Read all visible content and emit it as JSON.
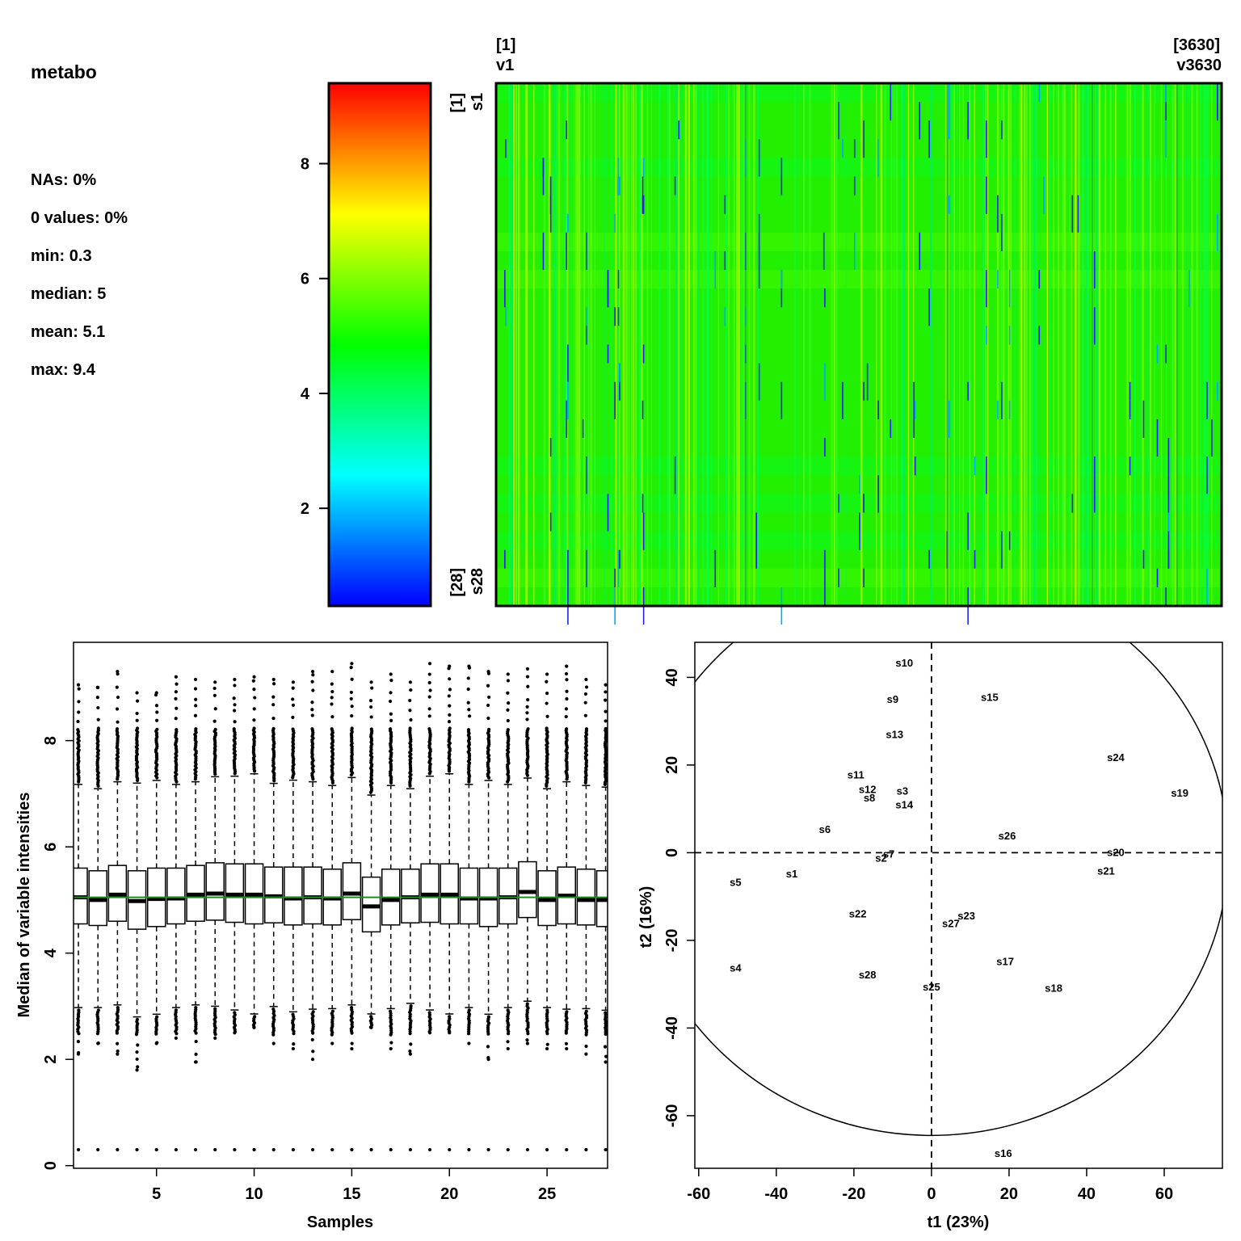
{
  "summary": {
    "title": "metabo",
    "stats": [
      "NAs: 0%",
      "0 values: 0%",
      "min: 0.3",
      "median: 5",
      "mean: 5.1",
      "max: 9.4"
    ]
  },
  "chart_data": [
    {
      "type": "heatmap",
      "title": "",
      "colorbar_ticks": [
        "2",
        "4",
        "6",
        "8"
      ],
      "colorbar_range": [
        0.3,
        9.4
      ],
      "colorbar_colors": [
        "#0000ff",
        "#00ffff",
        "#00ff00",
        "#ffff00",
        "#ff0000"
      ],
      "col_first_index": "[1]",
      "col_first_label": "v1",
      "col_last_index": "[3630]",
      "col_last_label": "v3630",
      "row_first_index": "[1]",
      "row_first_label": "s1",
      "row_last_index": "[28]",
      "row_last_label": "s28",
      "n_rows": 28,
      "n_cols": 3630,
      "dominant_color": "#22f000"
    },
    {
      "type": "box",
      "xlabel": "Samples",
      "ylabel": "Median of variable intensities",
      "xlim": [
        1,
        28
      ],
      "ylim": [
        0,
        9.8
      ],
      "x_ticks": [
        "5",
        "10",
        "15",
        "20",
        "25"
      ],
      "y_ticks": [
        "0",
        "2",
        "4",
        "6",
        "8"
      ],
      "median_line": 5.05,
      "median_line_color": "#228b22",
      "samples": [
        {
          "x": 1,
          "q1": 4.55,
          "median": 5.05,
          "q3": 5.6,
          "min": 2.1,
          "max": 9.05,
          "lower_out_min": 2.1,
          "upper_out_max": 9.05
        },
        {
          "x": 2,
          "q1": 4.52,
          "median": 5.0,
          "q3": 5.55,
          "min": 2.3,
          "max": 9.0,
          "lower_out_min": 2.3,
          "upper_out_max": 9.0
        },
        {
          "x": 3,
          "q1": 4.6,
          "median": 5.1,
          "q3": 5.65,
          "min": 2.1,
          "max": 9.3,
          "lower_out_min": 2.1,
          "upper_out_max": 9.3
        },
        {
          "x": 4,
          "q1": 4.45,
          "median": 4.98,
          "q3": 5.55,
          "min": 1.8,
          "max": 8.9,
          "lower_out_min": 1.8,
          "upper_out_max": 8.9
        },
        {
          "x": 5,
          "q1": 4.5,
          "median": 5.02,
          "q3": 5.6,
          "min": 2.3,
          "max": 8.9,
          "lower_out_min": 2.3,
          "upper_out_max": 8.9
        },
        {
          "x": 6,
          "q1": 4.55,
          "median": 5.03,
          "q3": 5.6,
          "min": 2.4,
          "max": 9.2,
          "lower_out_min": 2.4,
          "upper_out_max": 9.2
        },
        {
          "x": 7,
          "q1": 4.6,
          "median": 5.1,
          "q3": 5.65,
          "min": 1.95,
          "max": 9.15,
          "lower_out_min": 1.95,
          "upper_out_max": 9.15
        },
        {
          "x": 8,
          "q1": 4.62,
          "median": 5.12,
          "q3": 5.7,
          "min": 2.4,
          "max": 9.1,
          "lower_out_min": 2.4,
          "upper_out_max": 9.1
        },
        {
          "x": 9,
          "q1": 4.58,
          "median": 5.1,
          "q3": 5.68,
          "min": 2.5,
          "max": 9.15,
          "lower_out_min": 2.5,
          "upper_out_max": 9.15
        },
        {
          "x": 10,
          "q1": 4.55,
          "median": 5.1,
          "q3": 5.68,
          "min": 2.6,
          "max": 9.2,
          "lower_out_min": 2.6,
          "upper_out_max": 9.2
        },
        {
          "x": 11,
          "q1": 4.57,
          "median": 5.07,
          "q3": 5.62,
          "min": 2.3,
          "max": 9.15,
          "lower_out_min": 2.3,
          "upper_out_max": 9.15
        },
        {
          "x": 12,
          "q1": 4.53,
          "median": 5.03,
          "q3": 5.62,
          "min": 2.2,
          "max": 9.1,
          "lower_out_min": 2.2,
          "upper_out_max": 9.1
        },
        {
          "x": 13,
          "q1": 4.55,
          "median": 5.05,
          "q3": 5.62,
          "min": 2.0,
          "max": 9.3,
          "lower_out_min": 2.0,
          "upper_out_max": 9.3
        },
        {
          "x": 14,
          "q1": 4.53,
          "median": 5.03,
          "q3": 5.58,
          "min": 2.3,
          "max": 9.3,
          "lower_out_min": 2.3,
          "upper_out_max": 9.3
        },
        {
          "x": 15,
          "q1": 4.63,
          "median": 5.12,
          "q3": 5.7,
          "min": 2.2,
          "max": 9.45,
          "lower_out_min": 2.2,
          "upper_out_max": 9.45
        },
        {
          "x": 16,
          "q1": 4.4,
          "median": 4.88,
          "q3": 5.43,
          "min": 2.6,
          "max": 9.1,
          "lower_out_min": 2.6,
          "upper_out_max": 9.1
        },
        {
          "x": 17,
          "q1": 4.53,
          "median": 5.0,
          "q3": 5.58,
          "min": 2.2,
          "max": 9.25,
          "lower_out_min": 2.2,
          "upper_out_max": 9.25
        },
        {
          "x": 18,
          "q1": 4.57,
          "median": 5.05,
          "q3": 5.58,
          "min": 2.1,
          "max": 9.1,
          "lower_out_min": 2.1,
          "upper_out_max": 9.1
        },
        {
          "x": 19,
          "q1": 4.58,
          "median": 5.1,
          "q3": 5.68,
          "min": 2.5,
          "max": 9.45,
          "lower_out_min": 2.5,
          "upper_out_max": 9.45
        },
        {
          "x": 20,
          "q1": 4.55,
          "median": 5.1,
          "q3": 5.68,
          "min": 2.5,
          "max": 9.4,
          "lower_out_min": 2.5,
          "upper_out_max": 9.4
        },
        {
          "x": 21,
          "q1": 4.55,
          "median": 5.03,
          "q3": 5.6,
          "min": 2.3,
          "max": 9.4,
          "lower_out_min": 2.3,
          "upper_out_max": 9.4
        },
        {
          "x": 22,
          "q1": 4.5,
          "median": 5.03,
          "q3": 5.6,
          "min": 2.0,
          "max": 9.3,
          "lower_out_min": 2.0,
          "upper_out_max": 9.3
        },
        {
          "x": 23,
          "q1": 4.55,
          "median": 5.05,
          "q3": 5.6,
          "min": 2.2,
          "max": 9.25,
          "lower_out_min": 2.2,
          "upper_out_max": 9.25
        },
        {
          "x": 24,
          "q1": 4.67,
          "median": 5.15,
          "q3": 5.72,
          "min": 2.3,
          "max": 9.35,
          "lower_out_min": 2.3,
          "upper_out_max": 9.35
        },
        {
          "x": 25,
          "q1": 4.52,
          "median": 5.0,
          "q3": 5.55,
          "min": 2.2,
          "max": 9.25,
          "lower_out_min": 2.2,
          "upper_out_max": 9.25
        },
        {
          "x": 26,
          "q1": 4.55,
          "median": 5.08,
          "q3": 5.62,
          "min": 2.2,
          "max": 9.4,
          "lower_out_min": 2.2,
          "upper_out_max": 9.4
        },
        {
          "x": 27,
          "q1": 4.53,
          "median": 5.0,
          "q3": 5.58,
          "min": 2.1,
          "max": 9.15,
          "lower_out_min": 2.1,
          "upper_out_max": 9.15
        },
        {
          "x": 28,
          "q1": 4.5,
          "median": 5.0,
          "q3": 5.55,
          "min": 1.95,
          "max": 9.05,
          "lower_out_min": 1.95,
          "upper_out_max": 9.05
        }
      ],
      "low_outlier_value": 0.3
    },
    {
      "type": "scatter",
      "xlabel": "t1 (23%)",
      "ylabel": "t2 (16%)",
      "xlim": [
        -61,
        75
      ],
      "ylim": [
        -72,
        48
      ],
      "x_ticks": [
        "-60",
        "-40",
        "-20",
        "0",
        "20",
        "40",
        "60"
      ],
      "y_ticks": [
        "-60",
        "-40",
        "-20",
        "0",
        "20",
        "40"
      ],
      "reference_lines": {
        "x": 0,
        "y": 0,
        "style": "dashed"
      },
      "ellipse": {
        "cx": 0,
        "cy": 0,
        "rx": 76.5,
        "ry": 64.5
      },
      "points": [
        {
          "label": "s1",
          "x": -36,
          "y": -4.7
        },
        {
          "label": "s2",
          "x": -13,
          "y": -1.1
        },
        {
          "label": "s3",
          "x": -7.5,
          "y": 14.2
        },
        {
          "label": "s4",
          "x": -50.5,
          "y": -26.2
        },
        {
          "label": "s5",
          "x": -50.5,
          "y": -6.7
        },
        {
          "label": "s6",
          "x": -27.5,
          "y": 5.4
        },
        {
          "label": "s7",
          "x": -11,
          "y": -0.2
        },
        {
          "label": "s8",
          "x": -16,
          "y": 12.6
        },
        {
          "label": "s9",
          "x": -10,
          "y": 35.1
        },
        {
          "label": "s10",
          "x": -7,
          "y": 43.4
        },
        {
          "label": "s11",
          "x": -19.5,
          "y": 17.9
        },
        {
          "label": "s12",
          "x": -16.5,
          "y": 14.5
        },
        {
          "label": "s13",
          "x": -9.5,
          "y": 27.1
        },
        {
          "label": "s14",
          "x": -7,
          "y": 11.0
        },
        {
          "label": "s15",
          "x": 15,
          "y": 35.6
        },
        {
          "label": "s16",
          "x": 18.5,
          "y": -68.5
        },
        {
          "label": "s17",
          "x": 19,
          "y": -24.7
        },
        {
          "label": "s18",
          "x": 31.5,
          "y": -30.8
        },
        {
          "label": "s19",
          "x": 64,
          "y": 13.7
        },
        {
          "label": "s20",
          "x": 47.5,
          "y": 0.2
        },
        {
          "label": "s21",
          "x": 45,
          "y": -4.1
        },
        {
          "label": "s22",
          "x": -19,
          "y": -13.8
        },
        {
          "label": "s23",
          "x": 9,
          "y": -14.3
        },
        {
          "label": "s24",
          "x": 47.5,
          "y": 21.8
        },
        {
          "label": "s25",
          "x": 0,
          "y": -30.5
        },
        {
          "label": "s26",
          "x": 19.5,
          "y": 3.9
        },
        {
          "label": "s27",
          "x": 5,
          "y": -16.1
        },
        {
          "label": "s28",
          "x": -16.5,
          "y": -27.8
        }
      ]
    }
  ]
}
